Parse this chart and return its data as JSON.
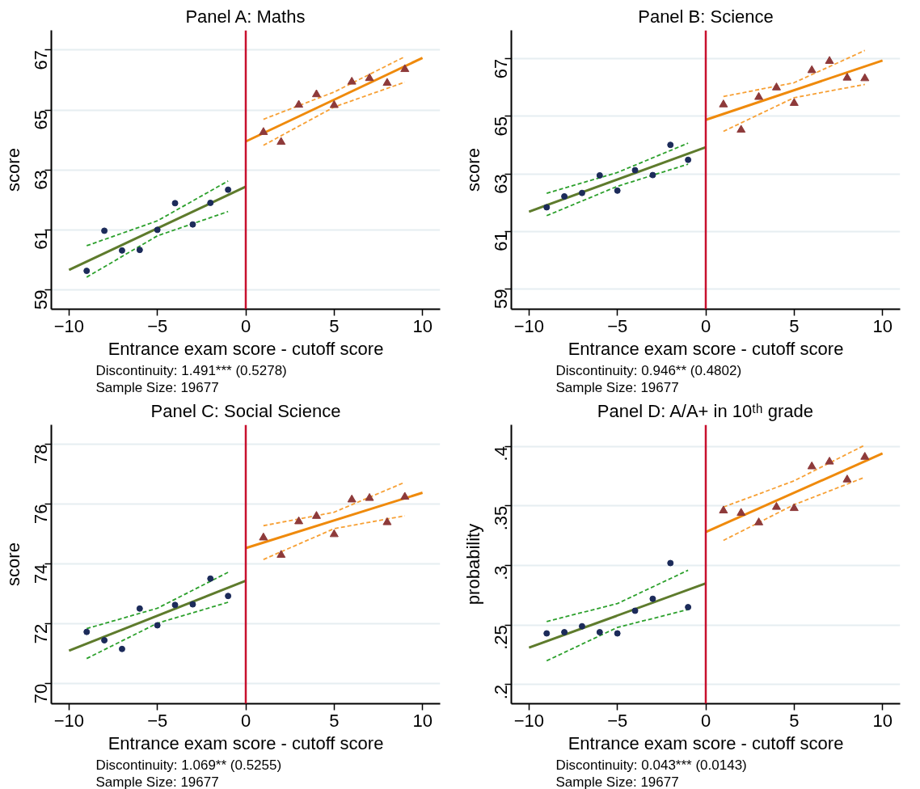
{
  "chart_data": [
    {
      "type": "scatter",
      "title": "Panel A: Maths",
      "xlabel": "Entrance exam score - cutoff score",
      "ylabel": "score",
      "xlim": [
        -11,
        11
      ],
      "ylim": [
        58.35,
        67.66
      ],
      "xticks": [
        -10,
        -5,
        0,
        5,
        10
      ],
      "yticks": [
        59,
        61,
        63,
        65,
        67
      ],
      "grid": "y",
      "ref_lines": [
        {
          "axis": "x",
          "value": 0,
          "color": "#c8102e"
        }
      ],
      "annotations": [
        "Discontinuity: 1.491*** (0.5278)",
        "Sample Size: 19677"
      ],
      "series": [
        {
          "type": "line",
          "color": "#2ca02c",
          "line_style": "dashed",
          "x": [
            -9,
            -5,
            -1
          ],
          "values": [
            60.47,
            61.3,
            62.63
          ]
        },
        {
          "type": "line",
          "color": "#2ca02c",
          "line_style": "dashed",
          "x": [
            -9,
            -5,
            -1
          ],
          "values": [
            59.42,
            60.8,
            61.61
          ]
        },
        {
          "type": "line",
          "color": "#f7a035",
          "line_style": "dashed",
          "x": [
            1,
            5,
            9
          ],
          "values": [
            64.69,
            65.6,
            66.78
          ]
        },
        {
          "type": "line",
          "color": "#f7a035",
          "line_style": "dashed",
          "x": [
            1,
            5,
            9
          ],
          "values": [
            63.82,
            65.1,
            65.93
          ]
        },
        {
          "type": "line",
          "color": "#5e7b2c",
          "line_style": "solid",
          "x": [
            -10,
            0
          ],
          "values": [
            59.66,
            62.44
          ]
        },
        {
          "type": "line",
          "color": "#ef8a0c",
          "line_style": "solid",
          "x": [
            0,
            10
          ],
          "values": [
            63.95,
            66.74
          ]
        },
        {
          "marker": "circle",
          "color": "#1c2b5a",
          "x": [
            -9,
            -8,
            -7,
            -6,
            -5,
            -4,
            -3,
            -2,
            -1
          ],
          "values": [
            59.63,
            60.97,
            60.31,
            60.33,
            61.0,
            61.89,
            61.18,
            61.9,
            62.34
          ]
        },
        {
          "marker": "triangle",
          "color": "#8e3a3a",
          "x": [
            1,
            2,
            3,
            4,
            5,
            6,
            7,
            8,
            9
          ],
          "values": [
            64.26,
            63.93,
            65.17,
            65.52,
            65.16,
            65.94,
            66.06,
            65.9,
            66.36
          ]
        }
      ]
    },
    {
      "type": "scatter",
      "title": "Panel B: Science",
      "xlabel": "Entrance exam score - cutoff score",
      "ylabel": "score",
      "xlim": [
        -11,
        11
      ],
      "ylim": [
        58.3,
        67.99
      ],
      "xticks": [
        -10,
        -5,
        0,
        5,
        10
      ],
      "yticks": [
        59,
        61,
        63,
        65,
        67
      ],
      "grid": "y",
      "ref_lines": [
        {
          "axis": "x",
          "value": 0,
          "color": "#c8102e"
        }
      ],
      "annotations": [
        "Discontinuity: 0.946** (0.4802)",
        "Sample Size: 19677"
      ],
      "series": [
        {
          "type": "line",
          "color": "#2ca02c",
          "line_style": "dashed",
          "x": [
            -9,
            -5,
            -1
          ],
          "values": [
            62.33,
            63.05,
            64.07
          ]
        },
        {
          "type": "line",
          "color": "#2ca02c",
          "line_style": "dashed",
          "x": [
            -9,
            -5,
            -1
          ],
          "values": [
            61.55,
            62.57,
            63.34
          ]
        },
        {
          "type": "line",
          "color": "#f7a035",
          "line_style": "dashed",
          "x": [
            1,
            5,
            9
          ],
          "values": [
            65.69,
            66.17,
            67.29
          ]
        },
        {
          "type": "line",
          "color": "#f7a035",
          "line_style": "dashed",
          "x": [
            1,
            5,
            9
          ],
          "values": [
            64.48,
            65.65,
            66.11
          ]
        },
        {
          "type": "line",
          "color": "#5e7b2c",
          "line_style": "solid",
          "x": [
            -10,
            0
          ],
          "values": [
            61.69,
            63.93
          ]
        },
        {
          "type": "line",
          "color": "#ef8a0c",
          "line_style": "solid",
          "x": [
            0,
            10
          ],
          "values": [
            64.88,
            66.94
          ]
        },
        {
          "marker": "circle",
          "color": "#1c2b5a",
          "x": [
            -9,
            -8,
            -7,
            -6,
            -5,
            -4,
            -3,
            -2,
            -1
          ],
          "values": [
            61.84,
            62.22,
            62.34,
            62.95,
            62.42,
            63.13,
            62.96,
            64.01,
            63.49
          ]
        },
        {
          "marker": "triangle",
          "color": "#8e3a3a",
          "x": [
            1,
            2,
            3,
            4,
            5,
            6,
            7,
            8,
            9
          ],
          "values": [
            65.41,
            64.53,
            65.67,
            66.0,
            65.46,
            66.6,
            66.92,
            66.34,
            66.32
          ]
        }
      ]
    },
    {
      "type": "scatter",
      "title": "Panel C: Social Science",
      "xlabel": "Entrance exam score - cutoff score",
      "ylabel": "score",
      "xlim": [
        -11,
        11
      ],
      "ylim": [
        69.33,
        78.65
      ],
      "xticks": [
        -10,
        -5,
        0,
        5,
        10
      ],
      "yticks": [
        70,
        72,
        74,
        76,
        78
      ],
      "grid": "y",
      "ref_lines": [
        {
          "axis": "x",
          "value": 0,
          "color": "#c8102e"
        }
      ],
      "annotations": [
        "Discontinuity: 1.069** (0.5255)",
        "Sample Size: 19677"
      ],
      "series": [
        {
          "type": "line",
          "color": "#2ca02c",
          "line_style": "dashed",
          "x": [
            -9,
            -5,
            -1
          ],
          "values": [
            71.84,
            72.52,
            73.72
          ]
        },
        {
          "type": "line",
          "color": "#2ca02c",
          "line_style": "dashed",
          "x": [
            -9,
            -5,
            -1
          ],
          "values": [
            70.84,
            72.02,
            72.72
          ]
        },
        {
          "type": "line",
          "color": "#f7a035",
          "line_style": "dashed",
          "x": [
            1,
            5,
            9
          ],
          "values": [
            75.28,
            75.73,
            76.73
          ]
        },
        {
          "type": "line",
          "color": "#f7a035",
          "line_style": "dashed",
          "x": [
            1,
            5,
            9
          ],
          "values": [
            74.15,
            75.18,
            75.61
          ]
        },
        {
          "type": "line",
          "color": "#5e7b2c",
          "line_style": "solid",
          "x": [
            -10,
            0
          ],
          "values": [
            71.1,
            73.44
          ]
        },
        {
          "type": "line",
          "color": "#ef8a0c",
          "line_style": "solid",
          "x": [
            0,
            10
          ],
          "values": [
            74.53,
            76.38
          ]
        },
        {
          "marker": "circle",
          "color": "#1c2b5a",
          "x": [
            -9,
            -8,
            -7,
            -6,
            -5,
            -4,
            -3,
            -2,
            -1
          ],
          "values": [
            71.73,
            71.45,
            71.16,
            72.51,
            71.95,
            72.63,
            72.65,
            73.51,
            72.93
          ]
        },
        {
          "marker": "triangle",
          "color": "#8e3a3a",
          "x": [
            1,
            2,
            3,
            4,
            5,
            6,
            7,
            8,
            9
          ],
          "values": [
            74.88,
            74.3,
            75.42,
            75.6,
            74.99,
            76.15,
            76.2,
            75.39,
            76.24
          ]
        }
      ]
    },
    {
      "type": "scatter",
      "title": "Panel D: A/A+ in 10ᵗʰ grade",
      "xlabel": "Entrance exam score - cutoff score",
      "ylabel": "probability",
      "xlim": [
        -11,
        11
      ],
      "ylim": [
        0.184,
        0.418
      ],
      "xticks": [
        -10,
        -5,
        0,
        5,
        10
      ],
      "yticks": [
        {
          "value": 0.2,
          "label": ".2"
        },
        {
          "value": 0.25,
          "label": ".25"
        },
        {
          "value": 0.3,
          "label": ".3"
        },
        {
          "value": 0.35,
          "label": ".35"
        },
        {
          "value": 0.4,
          "label": ".4"
        }
      ],
      "grid": "y",
      "ref_lines": [
        {
          "axis": "x",
          "value": 0,
          "color": "#c8102e"
        }
      ],
      "annotations": [
        "Discontinuity: 0.043*** (0.0143)",
        "Sample Size: 19677"
      ],
      "series": [
        {
          "type": "line",
          "color": "#2ca02c",
          "line_style": "dashed",
          "x": [
            -9,
            -5,
            -1
          ],
          "values": [
            0.253,
            0.268,
            0.296
          ]
        },
        {
          "type": "line",
          "color": "#2ca02c",
          "line_style": "dashed",
          "x": [
            -9,
            -5,
            -1
          ],
          "values": [
            0.22,
            0.248,
            0.263
          ]
        },
        {
          "type": "line",
          "color": "#f7a035",
          "line_style": "dashed",
          "x": [
            1,
            5,
            9
          ],
          "values": [
            0.349,
            0.371,
            0.401
          ]
        },
        {
          "type": "line",
          "color": "#f7a035",
          "line_style": "dashed",
          "x": [
            1,
            5,
            9
          ],
          "values": [
            0.321,
            0.351,
            0.374
          ]
        },
        {
          "type": "line",
          "color": "#5e7b2c",
          "line_style": "solid",
          "x": [
            -10,
            0
          ],
          "values": [
            0.231,
            0.285
          ]
        },
        {
          "type": "line",
          "color": "#ef8a0c",
          "line_style": "solid",
          "x": [
            0,
            10
          ],
          "values": [
            0.328,
            0.394
          ]
        },
        {
          "marker": "circle",
          "color": "#1c2b5a",
          "x": [
            -9,
            -8,
            -7,
            -6,
            -5,
            -4,
            -3,
            -2,
            -1
          ],
          "values": [
            0.243,
            0.244,
            0.249,
            0.244,
            0.243,
            0.262,
            0.272,
            0.302,
            0.265
          ]
        },
        {
          "marker": "triangle",
          "color": "#8e3a3a",
          "x": [
            1,
            2,
            3,
            4,
            5,
            6,
            7,
            8,
            9
          ],
          "values": [
            0.346,
            0.344,
            0.336,
            0.349,
            0.348,
            0.383,
            0.387,
            0.372,
            0.391
          ]
        }
      ]
    }
  ]
}
